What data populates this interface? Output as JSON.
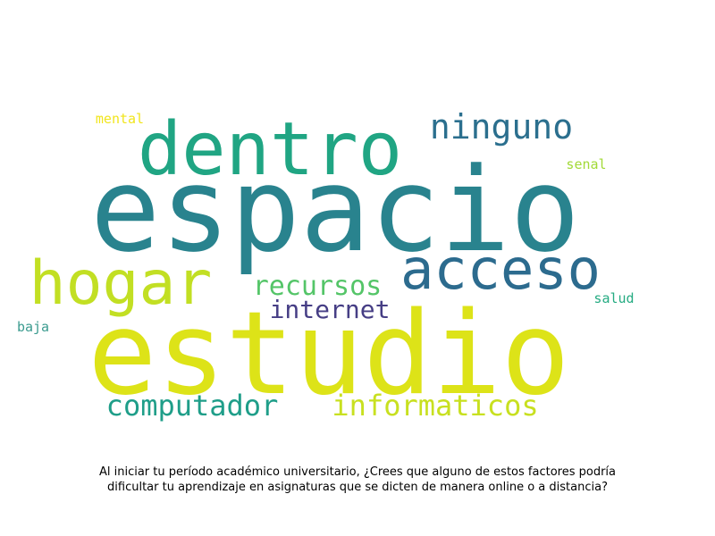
{
  "caption": "Al iniciar tu período académico universitario, ¿Crees que alguno de estos factores podría dificultar tu aprendizaje en asignaturas que se dicten de manera online o a distancia?",
  "chart_data": {
    "type": "wordcloud",
    "title": "",
    "words": [
      {
        "text": "espacio",
        "weight": 100,
        "color": "#29838e"
      },
      {
        "text": "estudio",
        "weight": 98,
        "color": "#dde318"
      },
      {
        "text": "dentro",
        "weight": 62,
        "color": "#20a583"
      },
      {
        "text": "hogar",
        "weight": 52,
        "color": "#c2df23"
      },
      {
        "text": "acceso",
        "weight": 48,
        "color": "#2c6b8e"
      },
      {
        "text": "ninguno",
        "weight": 33,
        "color": "#2b6f8e"
      },
      {
        "text": "recursos",
        "weight": 26,
        "color": "#54c568"
      },
      {
        "text": "internet",
        "weight": 24,
        "color": "#463e85"
      },
      {
        "text": "computador",
        "weight": 28,
        "color": "#1f9e89"
      },
      {
        "text": "informaticos",
        "weight": 28,
        "color": "#c8e020"
      },
      {
        "text": "mental",
        "weight": 14,
        "color": "#f1e51d"
      },
      {
        "text": "senal",
        "weight": 14,
        "color": "#a2da37"
      },
      {
        "text": "salud",
        "weight": 14,
        "color": "#25ab82"
      },
      {
        "text": "baja",
        "weight": 14,
        "color": "#3b9b8f"
      }
    ]
  }
}
